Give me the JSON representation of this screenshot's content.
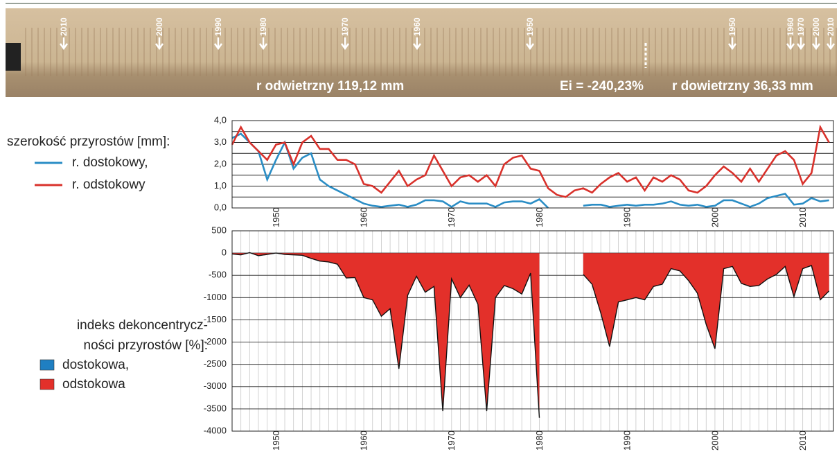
{
  "core_image": {
    "year_marks": [
      "2010",
      "2000",
      "1990",
      "1980",
      "1970",
      "1960",
      "1950",
      "1950",
      "1960",
      "1970",
      "2000",
      "2010"
    ],
    "radius_left": "r odwietrzny 119,12 mm",
    "eccentricity": "Ei = -240,23%",
    "radius_right": "r dowietrzny 36,33 mm"
  },
  "chart_data": [
    {
      "type": "line",
      "legend_title": "szerokość przyrostów [mm]:",
      "x": [
        1945,
        1946,
        1947,
        1948,
        1949,
        1950,
        1951,
        1952,
        1953,
        1954,
        1955,
        1956,
        1957,
        1958,
        1959,
        1960,
        1961,
        1962,
        1963,
        1964,
        1965,
        1966,
        1967,
        1968,
        1969,
        1970,
        1971,
        1972,
        1973,
        1974,
        1975,
        1976,
        1977,
        1978,
        1979,
        1980,
        1981,
        1982,
        1983,
        1984,
        1985,
        1986,
        1987,
        1988,
        1989,
        1990,
        1991,
        1992,
        1993,
        1994,
        1995,
        1996,
        1997,
        1998,
        1999,
        2000,
        2001,
        2002,
        2003,
        2004,
        2005,
        2006,
        2007,
        2008,
        2009,
        2010,
        2011,
        2012,
        2013
      ],
      "series": [
        {
          "name": "r. dostokowy,",
          "color": "#2a8dc5",
          "values": [
            3.2,
            3.4,
            3.0,
            2.6,
            1.3,
            2.2,
            3.0,
            1.8,
            2.3,
            2.5,
            1.3,
            1.0,
            0.8,
            0.6,
            0.4,
            0.2,
            0.1,
            0.05,
            0.1,
            0.15,
            0.05,
            0.15,
            0.35,
            0.35,
            0.3,
            0.05,
            0.3,
            0.2,
            0.2,
            0.2,
            0.05,
            0.25,
            0.3,
            0.3,
            0.2,
            0.4,
            0.0,
            null,
            null,
            null,
            0.1,
            0.15,
            0.15,
            0.05,
            0.1,
            0.15,
            0.1,
            0.15,
            0.15,
            0.2,
            0.3,
            0.15,
            0.1,
            0.15,
            0.05,
            0.1,
            0.35,
            0.35,
            0.2,
            0.05,
            0.2,
            0.45,
            0.55,
            0.65,
            0.15,
            0.2,
            0.45,
            0.3,
            0.35
          ]
        },
        {
          "name": "r. odstokowy",
          "color": "#d9312b",
          "values": [
            2.9,
            3.7,
            3.0,
            2.6,
            2.2,
            2.9,
            3.0,
            2.0,
            3.0,
            3.3,
            2.7,
            2.7,
            2.2,
            2.2,
            2.0,
            1.1,
            1.0,
            0.7,
            1.2,
            1.7,
            1.0,
            1.3,
            1.5,
            2.4,
            1.7,
            1.0,
            1.4,
            1.5,
            1.2,
            1.5,
            1.0,
            2.0,
            2.3,
            2.4,
            1.8,
            1.7,
            0.9,
            0.6,
            0.5,
            0.8,
            0.9,
            0.7,
            1.1,
            1.4,
            1.6,
            1.2,
            1.4,
            0.8,
            1.4,
            1.2,
            1.5,
            1.3,
            0.8,
            0.7,
            1.0,
            1.5,
            1.9,
            1.6,
            1.2,
            1.8,
            1.2,
            1.8,
            2.4,
            2.6,
            2.2,
            1.1,
            1.6,
            3.7,
            3.0
          ]
        }
      ],
      "xlim": [
        1945,
        2013.5
      ],
      "xticks": [
        1950,
        1960,
        1970,
        1980,
        1990,
        2000,
        2010
      ],
      "ylim": [
        0,
        4
      ],
      "yticks": [
        {
          "value": 0,
          "label": "0,0"
        },
        {
          "value": 1,
          "label": "1,0"
        },
        {
          "value": 2,
          "label": "2,0"
        },
        {
          "value": 3,
          "label": "3,0"
        },
        {
          "value": 4,
          "label": "4,0"
        }
      ],
      "grid": true
    },
    {
      "type": "area",
      "legend_title": [
        "indeks dekoncentrycz-",
        "ności przyrostów [%]:"
      ],
      "x": [
        1945,
        1946,
        1947,
        1948,
        1949,
        1950,
        1951,
        1952,
        1953,
        1954,
        1955,
        1956,
        1957,
        1958,
        1959,
        1960,
        1961,
        1962,
        1963,
        1964,
        1965,
        1966,
        1967,
        1968,
        1969,
        1970,
        1971,
        1972,
        1973,
        1974,
        1975,
        1976,
        1977,
        1978,
        1979,
        1980,
        1981,
        1982,
        1983,
        1984,
        1985,
        1986,
        1987,
        1988,
        1989,
        1990,
        1991,
        1992,
        1993,
        1994,
        1995,
        1996,
        1997,
        1998,
        1999,
        2000,
        2001,
        2002,
        2003,
        2004,
        2005,
        2006,
        2007,
        2008,
        2009,
        2010,
        2011,
        2012,
        2013
      ],
      "values": [
        -20,
        -40,
        10,
        -60,
        -30,
        0,
        -30,
        -40,
        -50,
        -120,
        -180,
        -200,
        -250,
        -560,
        -550,
        -1000,
        -1050,
        -1420,
        -1250,
        -2600,
        -950,
        -520,
        -880,
        -750,
        -3550,
        -580,
        -1000,
        -720,
        -1150,
        -3550,
        -1000,
        -730,
        -800,
        -920,
        -450,
        -3700,
        null,
        null,
        null,
        null,
        -480,
        -700,
        -1350,
        -2100,
        -1100,
        -1050,
        -1000,
        -1050,
        -750,
        -700,
        -350,
        -400,
        -620,
        -900,
        -1600,
        -2150,
        -350,
        -300,
        -680,
        -750,
        -730,
        -580,
        -480,
        -300,
        -980,
        -350,
        -280,
        -1050,
        -850
      ],
      "legend": [
        {
          "name": "dostokowa,",
          "color": "#1f7fc2",
          "side": "positive"
        },
        {
          "name": "odstokowa",
          "color": "#e3302a",
          "side": "negative"
        }
      ],
      "xlim": [
        1945,
        2013.5
      ],
      "xticks": [
        1950,
        1960,
        1970,
        1980,
        1990,
        2000,
        2010
      ],
      "ylim": [
        -4000,
        500
      ],
      "yticks": [
        500,
        0,
        -500,
        -1000,
        -1500,
        -2000,
        -2500,
        -3000,
        -3500,
        -4000
      ],
      "grid": true
    }
  ]
}
